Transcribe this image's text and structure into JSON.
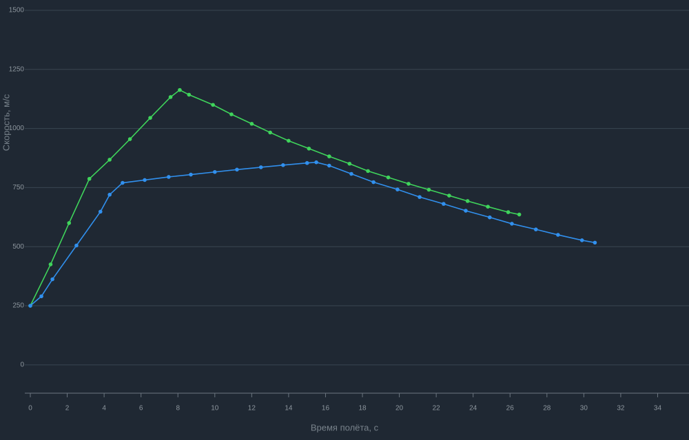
{
  "chart_data": {
    "type": "line",
    "x_label": "Время полёта, с",
    "y_label": "Скорость, м/с",
    "xlim": [
      0,
      35.7
    ],
    "ylim": [
      -120,
      1500
    ],
    "xticks": [
      0,
      2,
      4,
      6,
      8,
      10,
      12,
      14,
      16,
      18,
      20,
      22,
      24,
      26,
      28,
      30,
      32,
      34
    ],
    "yticks": [
      0,
      250,
      500,
      750,
      1000,
      1250,
      1500
    ],
    "grid": true,
    "series": [
      {
        "color": "#3fd45b",
        "x": [
          0,
          1.1,
          2.1,
          3.2,
          4.3,
          5.4,
          6.5,
          7.6,
          8.1,
          8.6,
          9.9,
          10.9,
          12,
          13,
          14,
          15.1,
          16.2,
          17.3,
          18.3,
          19.4,
          20.5,
          21.6,
          22.7,
          23.7,
          24.8,
          25.9,
          26.5
        ],
        "values": [
          250,
          425,
          600,
          787,
          868,
          955,
          1045,
          1133,
          1163,
          1143,
          1100,
          1060,
          1020,
          983,
          948,
          915,
          882,
          851,
          820,
          793,
          766,
          741,
          716,
          693,
          669,
          646,
          636
        ]
      },
      {
        "color": "#3190ee",
        "x": [
          0,
          0.6,
          1.2,
          2.5,
          3.8,
          4.3,
          5,
          6.2,
          7.5,
          8.7,
          10,
          11.2,
          12.5,
          13.7,
          15,
          15.5,
          16.2,
          17.4,
          18.6,
          19.9,
          21.1,
          22.4,
          23.6,
          24.9,
          26.1,
          27.4,
          28.6,
          29.9,
          30.6
        ],
        "values": [
          250,
          290,
          362,
          505,
          648,
          720,
          770,
          782,
          795,
          805,
          816,
          826,
          836,
          845,
          854,
          857,
          843,
          808,
          773,
          742,
          710,
          681,
          652,
          624,
          597,
          573,
          550,
          527,
          517
        ]
      }
    ]
  }
}
